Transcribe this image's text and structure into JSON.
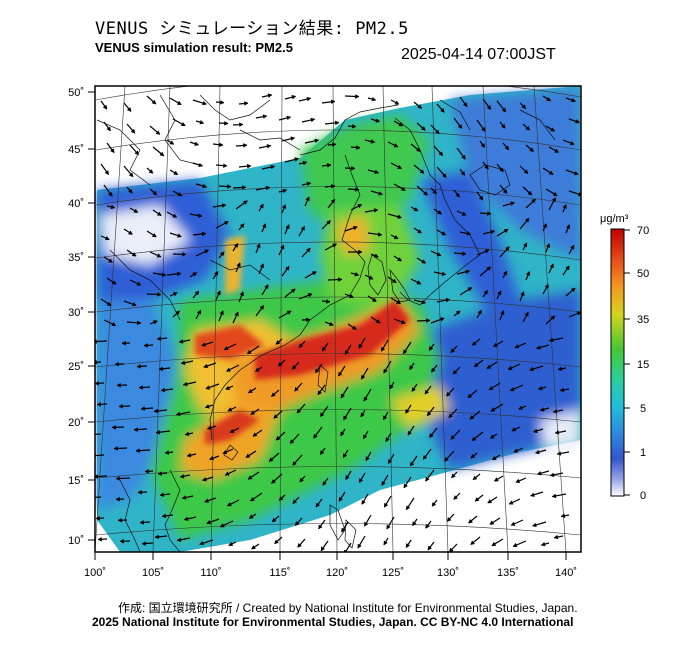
{
  "header": {
    "title_jp": "VENUS シミュレーション結果: PM2.5",
    "title_en": "VENUS simulation result: PM2.5",
    "timestamp": "2025-04-14 07:00JST"
  },
  "map": {
    "lon_ticks": [
      "100˚",
      "105˚",
      "110˚",
      "115˚",
      "120˚",
      "125˚",
      "130˚",
      "135˚",
      "140˚"
    ],
    "lat_ticks": [
      "50˚",
      "45˚",
      "40˚",
      "35˚",
      "30˚",
      "25˚",
      "20˚",
      "15˚",
      "10˚"
    ],
    "colors": {
      "high": "#d7191c",
      "mid": "#fdae61",
      "green": "#33cc33",
      "cyan": "#22cccc",
      "blue": "#2b64d9",
      "pale": "#dfe6f5"
    }
  },
  "colorbar": {
    "unit": "μg/m³",
    "labels": [
      "70",
      "50",
      "35",
      "15",
      "5",
      "1",
      "0"
    ]
  },
  "footer": {
    "credit_line1": "作成: 国立環境研究所 / Created by National Institute for Environmental Studies, Japan.",
    "credit_line2": "2025 National Institute for Environmental Studies, Japan. CC BY-NC 4.0 International"
  }
}
